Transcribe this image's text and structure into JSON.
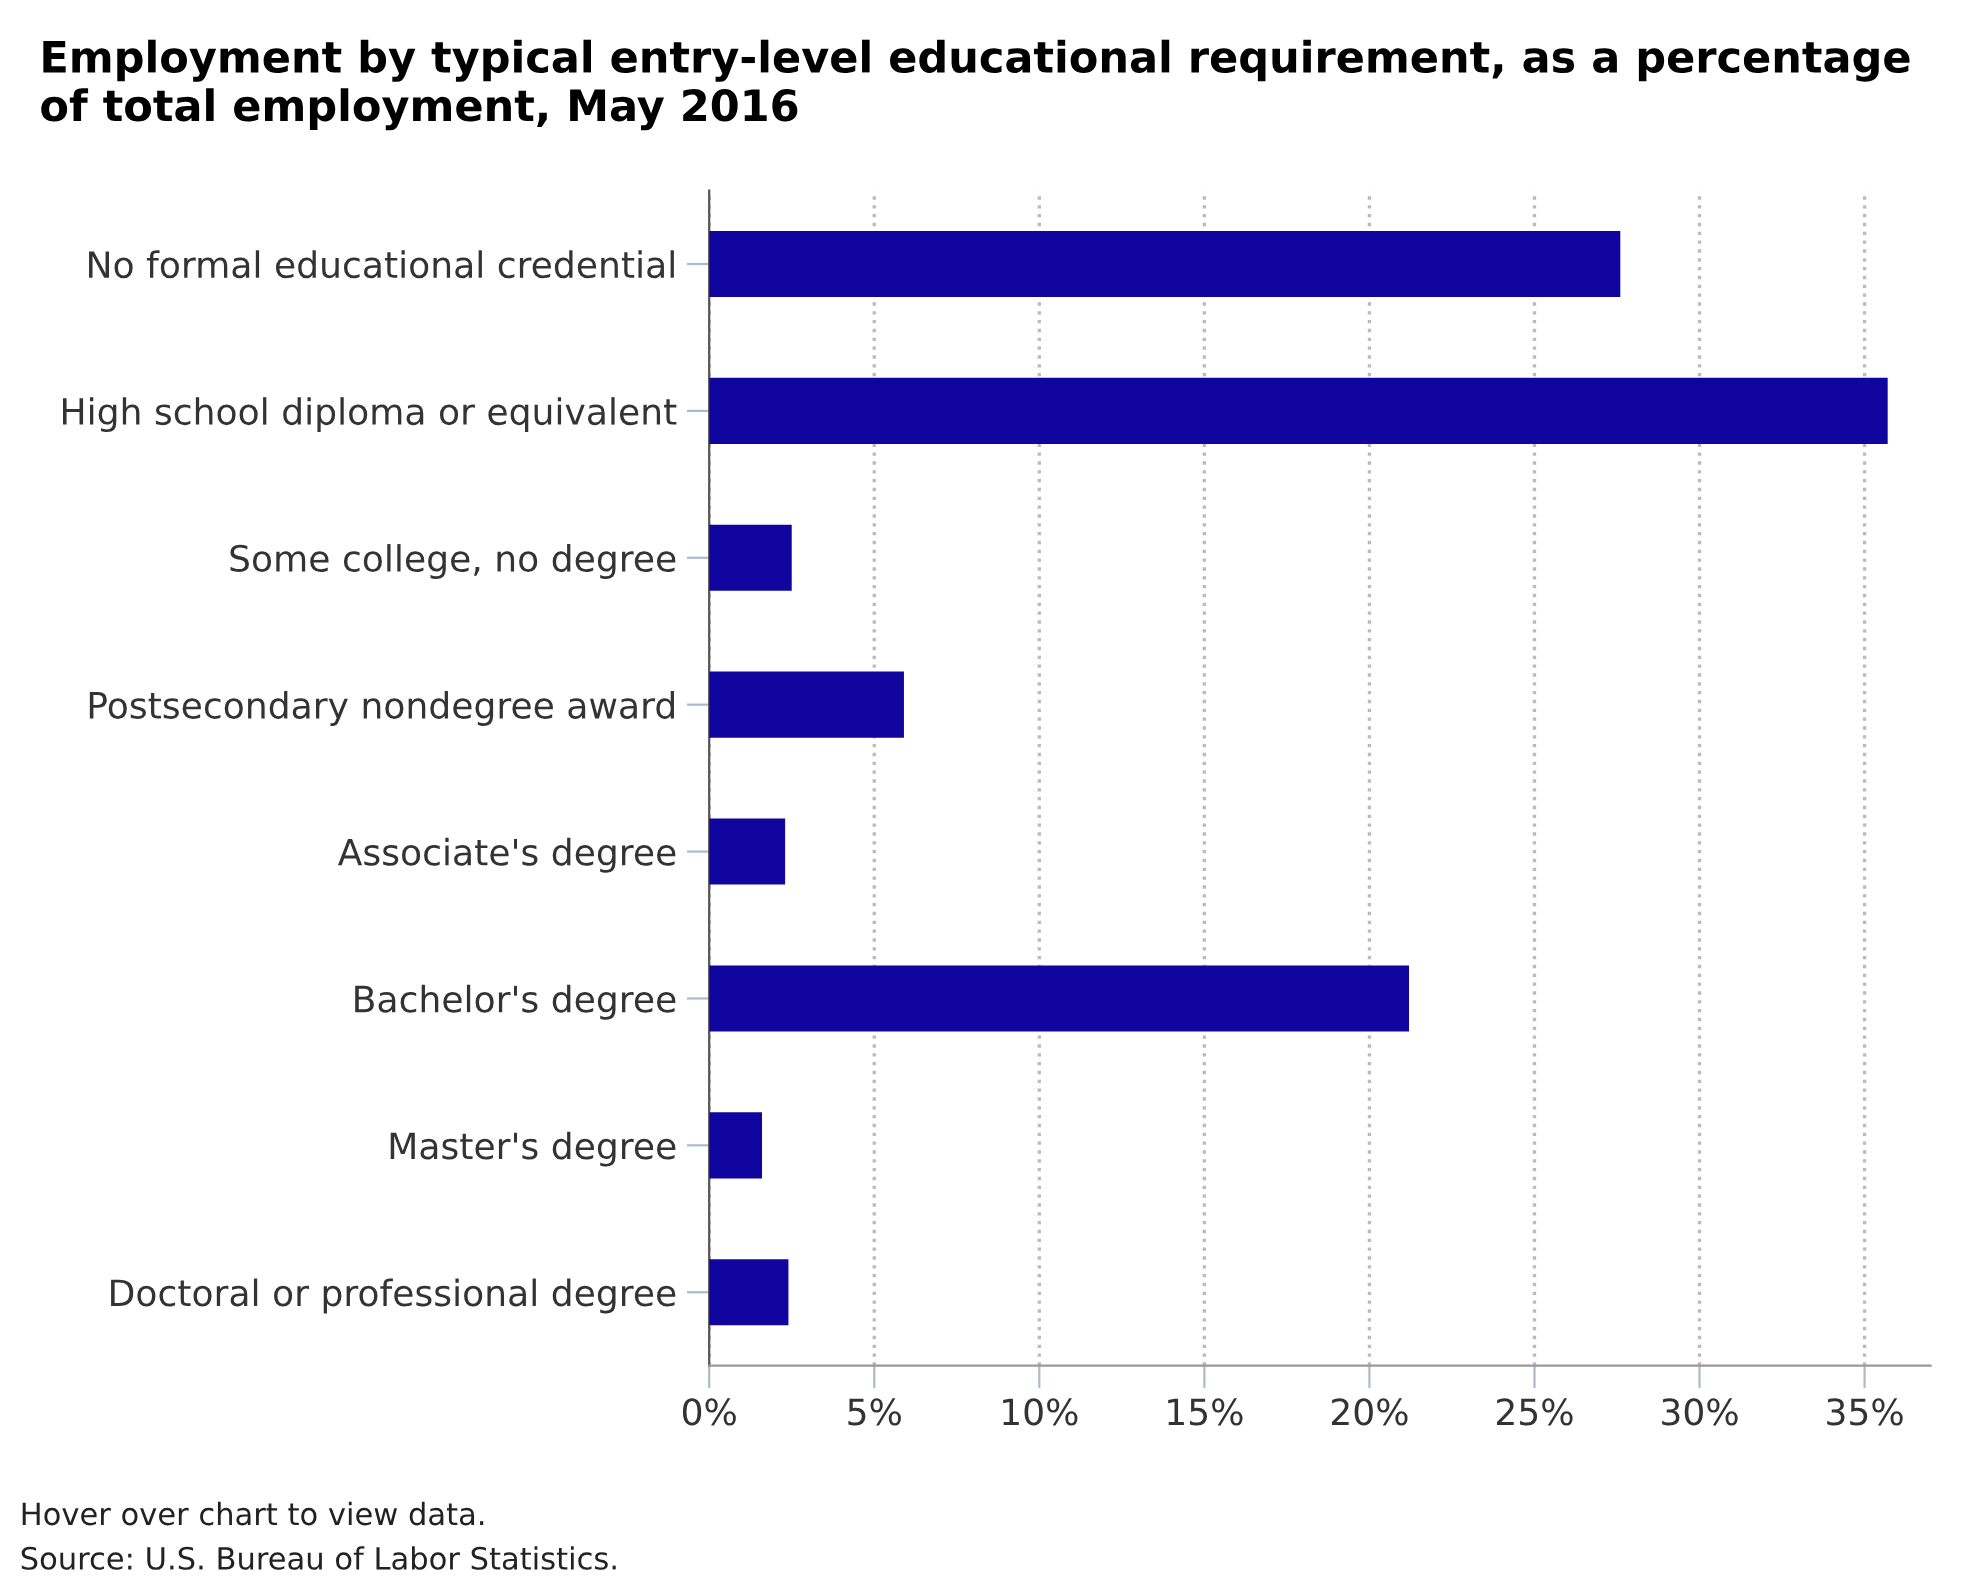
{
  "chart_data": {
    "type": "bar",
    "orientation": "horizontal",
    "title": "Employment by typical entry-level educational requirement, as a percentage of total employment, May 2016",
    "categories": [
      "No formal educational credential",
      "High school diploma or equivalent",
      "Some college, no degree",
      "Postsecondary nondegree award",
      "Associate's degree",
      "Bachelor's degree",
      "Master's degree",
      "Doctoral or professional degree"
    ],
    "values": [
      27.6,
      35.7,
      2.5,
      5.9,
      2.3,
      21.2,
      1.6,
      2.4
    ],
    "color": "#10069f",
    "xlim": [
      0,
      37
    ],
    "xticks": [
      {
        "value": 0,
        "label": "0%"
      },
      {
        "value": 5,
        "label": "5%"
      },
      {
        "value": 10,
        "label": "10%"
      },
      {
        "value": 15,
        "label": "15%"
      },
      {
        "value": 20,
        "label": "20%"
      },
      {
        "value": 25,
        "label": "25%"
      },
      {
        "value": 30,
        "label": "30%"
      },
      {
        "value": 35,
        "label": "35%"
      }
    ],
    "grid": "x",
    "annotations": [
      "Hover over chart to view data.",
      "Source: U.S. Bureau of Labor Statistics."
    ]
  }
}
